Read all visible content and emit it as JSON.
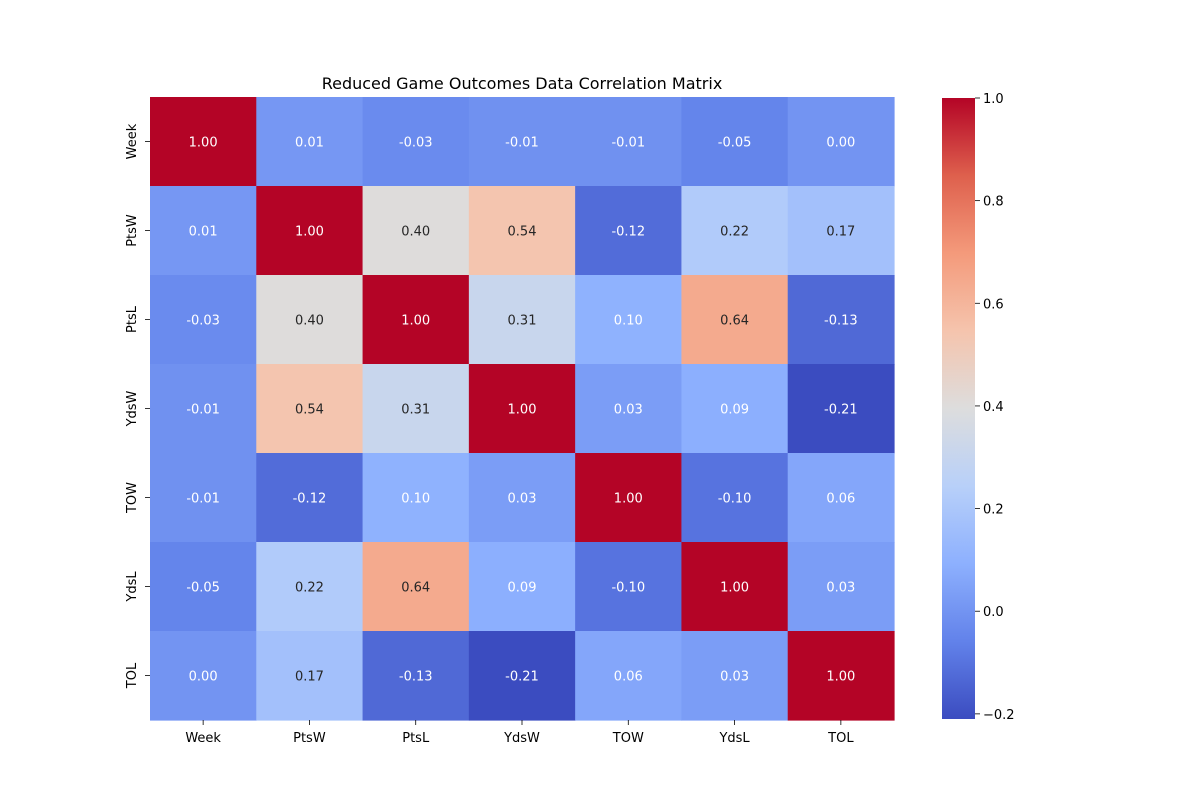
{
  "chart_data": {
    "type": "heatmap",
    "title": "Reduced Game Outcomes Data Correlation Matrix",
    "x_labels": [
      "Week",
      "PtsW",
      "PtsL",
      "YdsW",
      "TOW",
      "YdsL",
      "TOL"
    ],
    "y_labels": [
      "Week",
      "PtsW",
      "PtsL",
      "YdsW",
      "TOW",
      "YdsL",
      "TOL"
    ],
    "values": [
      [
        1.0,
        0.01,
        -0.03,
        -0.01,
        -0.01,
        -0.05,
        0.0
      ],
      [
        0.01,
        1.0,
        0.4,
        0.54,
        -0.12,
        0.22,
        0.17
      ],
      [
        -0.03,
        0.4,
        1.0,
        0.31,
        0.1,
        0.64,
        -0.13
      ],
      [
        -0.01,
        0.54,
        0.31,
        1.0,
        0.03,
        0.09,
        -0.21
      ],
      [
        -0.01,
        -0.12,
        0.1,
        0.03,
        1.0,
        -0.1,
        0.06
      ],
      [
        -0.05,
        0.22,
        0.64,
        0.09,
        -0.1,
        1.0,
        0.03
      ],
      [
        0.0,
        0.17,
        -0.13,
        -0.21,
        0.06,
        0.03,
        1.0
      ]
    ],
    "colormap": "coolwarm",
    "vmin": -0.21,
    "vmax": 1.0,
    "colorbar_ticks": [
      1.0,
      0.8,
      0.6,
      0.4,
      0.2,
      0.0,
      -0.2
    ],
    "colorbar_tick_labels": [
      "1.0",
      "0.8",
      "0.6",
      "0.4",
      "0.2",
      "0.0",
      "−0.2"
    ],
    "annotation_format": "0.00"
  }
}
